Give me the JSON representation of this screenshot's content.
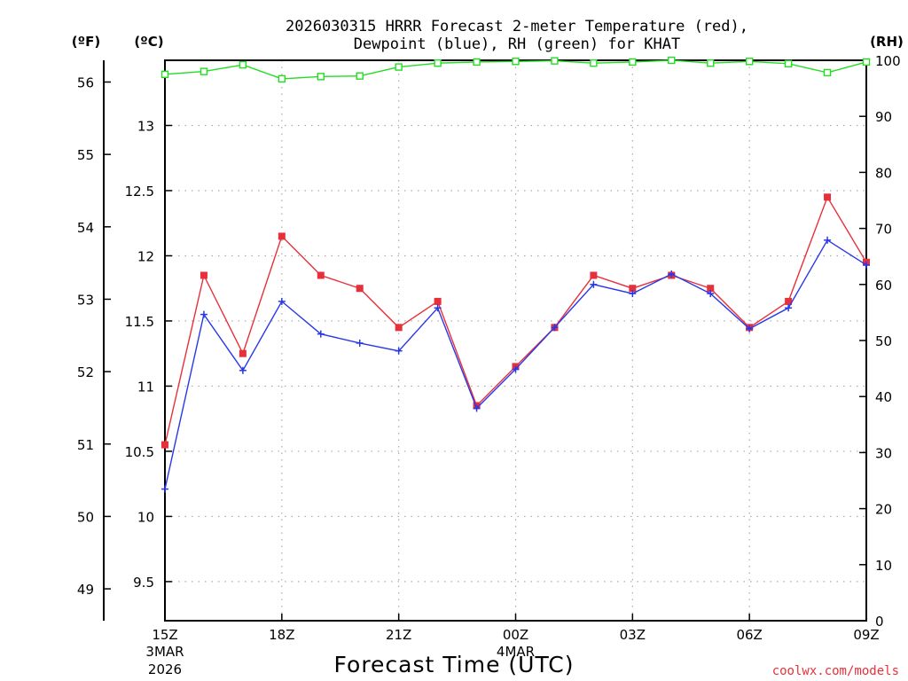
{
  "title": {
    "line1": "2026030315 HRRR Forecast 2-meter Temperature (red),",
    "line2": "Dewpoint (blue), RH (green) for KHAT"
  },
  "axis_units": {
    "left_f": "(ºF)",
    "left_c": "(ºC)",
    "right_rh": "(RH)"
  },
  "xlabel": "Forecast Time (UTC)",
  "credit": "coolwx.com/models",
  "colors": {
    "temperature": "#e8303a",
    "dewpoint": "#2838e8",
    "rh": "#22dd22",
    "grid": "#aaaaaa"
  },
  "chart_data": {
    "type": "line",
    "title": "2026030315 HRRR Forecast 2-meter Temperature (red), Dewpoint (blue), RH (green) for KHAT",
    "xlabel": "Forecast Time (UTC)",
    "x_hours": [
      0,
      1,
      2,
      3,
      4,
      5,
      6,
      7,
      8,
      9,
      10,
      11,
      12,
      13,
      14,
      15,
      16,
      17,
      18
    ],
    "x_ticks": [
      {
        "hour": 0,
        "label": "15Z",
        "sub1": "3MAR",
        "sub2": "2026"
      },
      {
        "hour": 3,
        "label": "18Z"
      },
      {
        "hour": 6,
        "label": "21Z"
      },
      {
        "hour": 9,
        "label": "00Z",
        "sub1": "4MAR"
      },
      {
        "hour": 12,
        "label": "03Z"
      },
      {
        "hour": 15,
        "label": "06Z"
      },
      {
        "hour": 18,
        "label": "09Z"
      }
    ],
    "y_celsius": {
      "range": [
        9.2,
        13.5
      ],
      "ticks": [
        "9.5",
        "10",
        "10.5",
        "11",
        "11.5",
        "12",
        "12.5",
        "13"
      ]
    },
    "y_fahrenheit": {
      "ticks": [
        "49",
        "50",
        "51",
        "52",
        "53",
        "54",
        "55",
        "56"
      ]
    },
    "y_rh": {
      "range": [
        0,
        100
      ],
      "ticks": [
        "0",
        "10",
        "20",
        "30",
        "40",
        "50",
        "60",
        "70",
        "80",
        "90",
        "100"
      ]
    },
    "grid": true,
    "series": [
      {
        "key": "temperature",
        "values": [
          10.55,
          11.85,
          11.25,
          12.15,
          11.85,
          11.75,
          11.45,
          11.65,
          10.85,
          11.15,
          11.45,
          11.85,
          11.75,
          11.85,
          11.75,
          11.45,
          11.65,
          12.45,
          11.95
        ]
      },
      {
        "key": "dewpoint",
        "values": [
          10.21,
          11.55,
          11.12,
          11.65,
          11.4,
          11.33,
          11.27,
          11.6,
          10.83,
          11.13,
          11.45,
          11.78,
          11.71,
          11.86,
          11.71,
          11.44,
          11.6,
          12.12,
          11.93
        ]
      },
      {
        "key": "rh",
        "values": [
          97.5,
          98.0,
          99.2,
          96.7,
          97.1,
          97.2,
          98.8,
          99.5,
          99.7,
          99.8,
          99.9,
          99.5,
          99.7,
          100,
          99.5,
          99.8,
          99.4,
          97.8,
          99.7
        ]
      }
    ]
  }
}
